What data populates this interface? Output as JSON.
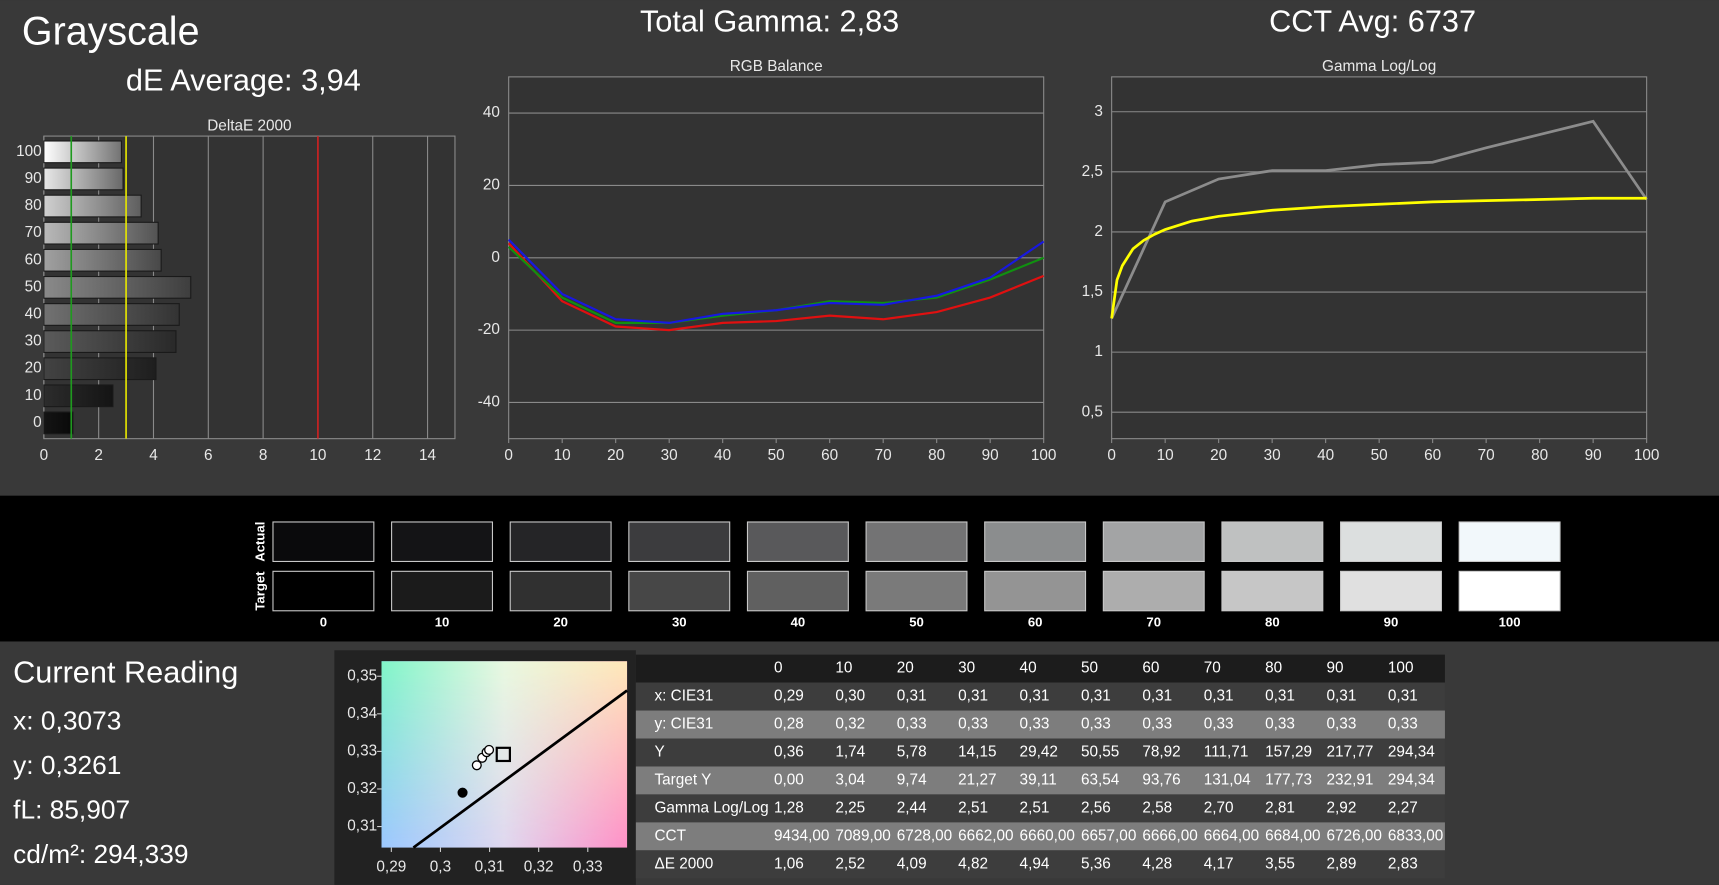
{
  "header": {
    "title": "Grayscale",
    "de_average": "dE Average: 3,94",
    "total_gamma": "Total Gamma: 2,83",
    "cct_avg": "CCT Avg: 6737"
  },
  "chart_data": [
    {
      "type": "hbar",
      "title": "DeltaE 2000",
      "categories": [
        "0",
        "10",
        "20",
        "30",
        "40",
        "50",
        "60",
        "70",
        "80",
        "90",
        "100"
      ],
      "values": [
        1.06,
        2.52,
        4.09,
        4.82,
        4.94,
        5.36,
        4.28,
        4.17,
        3.55,
        2.89,
        2.83
      ],
      "xlim": [
        0,
        15
      ],
      "xticks": [
        0,
        2,
        4,
        6,
        8,
        10,
        12,
        14
      ],
      "grid": true,
      "reference_lines": [
        {
          "value": 1,
          "color": "#1f9a1f"
        },
        {
          "value": 3,
          "color": "#e6e600"
        },
        {
          "value": 10,
          "color": "#cc2020"
        }
      ]
    },
    {
      "type": "line",
      "title": "RGB Balance",
      "x": [
        0,
        10,
        20,
        30,
        40,
        50,
        60,
        70,
        80,
        90,
        100
      ],
      "xlim": [
        0,
        100
      ],
      "xticks": [
        0,
        10,
        20,
        30,
        40,
        50,
        60,
        70,
        80,
        90,
        100
      ],
      "ylim": [
        -50,
        50
      ],
      "yticks": [
        -40,
        -20,
        0,
        20,
        40
      ],
      "grid": true,
      "series": [
        {
          "color": "#e01010",
          "values": [
            4,
            -12,
            -19,
            -20,
            -18,
            -17.5,
            -16,
            -17,
            -15,
            -11,
            -5
          ]
        },
        {
          "color": "#109010",
          "values": [
            3,
            -11,
            -18,
            -18,
            -16,
            -14.5,
            -12,
            -12.5,
            -11,
            -6,
            0
          ]
        },
        {
          "color": "#1818e0",
          "values": [
            5,
            -10,
            -17,
            -18,
            -15.5,
            -14.5,
            -12.5,
            -13,
            -10.5,
            -5.5,
            4.5
          ]
        }
      ]
    },
    {
      "type": "line",
      "title": "Gamma Log/Log",
      "x": [
        0,
        10,
        20,
        30,
        40,
        50,
        60,
        70,
        80,
        90,
        100
      ],
      "xlim": [
        0,
        100
      ],
      "xticks": [
        0,
        10,
        20,
        30,
        40,
        50,
        60,
        70,
        80,
        90,
        100
      ],
      "ylim": [
        0.28,
        3.29
      ],
      "yticks": [
        {
          "value": 0.5,
          "label": "0,5"
        },
        1,
        {
          "value": 1.5,
          "label": "1,5"
        },
        2,
        {
          "value": 2.5,
          "label": "2,5"
        },
        3
      ],
      "grid": true,
      "series": [
        {
          "color": "#8c8c8c",
          "values": [
            1.28,
            2.25,
            2.44,
            2.51,
            2.51,
            2.56,
            2.58,
            2.7,
            2.81,
            2.92,
            2.27
          ]
        },
        {
          "color": "#ffff00",
          "x": [
            0,
            1,
            2,
            4,
            6,
            8,
            10,
            15,
            20,
            30,
            40,
            50,
            60,
            70,
            80,
            90,
            100
          ],
          "values": [
            1.28,
            1.6,
            1.72,
            1.86,
            1.93,
            1.98,
            2.02,
            2.09,
            2.13,
            2.18,
            2.21,
            2.23,
            2.25,
            2.26,
            2.27,
            2.28,
            2.28
          ]
        }
      ]
    },
    {
      "type": "scatter",
      "xlim": [
        0.288,
        0.338
      ],
      "xticks": [
        {
          "value": 0.29,
          "label": "0,29"
        },
        {
          "value": 0.3,
          "label": "0,3"
        },
        {
          "value": 0.31,
          "label": "0,31"
        },
        {
          "value": 0.32,
          "label": "0,32"
        },
        {
          "value": 0.33,
          "label": "0,33"
        }
      ],
      "ylim": [
        0.3044,
        0.354
      ],
      "yticks": [
        {
          "value": 0.31,
          "label": "0,31"
        },
        {
          "value": 0.32,
          "label": "0,32"
        },
        {
          "value": 0.33,
          "label": "0,33"
        },
        {
          "value": 0.34,
          "label": "0,34"
        },
        {
          "value": 0.35,
          "label": "0,35"
        }
      ],
      "series": [
        {
          "marker": "line",
          "color": "#000000",
          "x": [
            0.2945,
            0.338
          ],
          "values": [
            0.3044,
            0.3462
          ]
        },
        {
          "marker": "circle-filled",
          "color": "#000000",
          "x": [
            0.3045
          ],
          "values": [
            0.319
          ]
        },
        {
          "marker": "circle-open",
          "color": "#000000",
          "x": [
            0.3074,
            0.3085,
            0.3094,
            0.3099
          ],
          "values": [
            0.3263,
            0.3283,
            0.3298,
            0.3304
          ]
        },
        {
          "marker": "square",
          "color": "#000000",
          "x": [
            0.3128
          ],
          "values": [
            0.3292
          ]
        }
      ]
    }
  ],
  "swatches": {
    "row_labels": [
      "Actual",
      "Target"
    ],
    "columns": [
      "0",
      "10",
      "20",
      "30",
      "40",
      "50",
      "60",
      "70",
      "80",
      "90",
      "100"
    ],
    "actual": [
      "#0a0a0c",
      "#141416",
      "#252527",
      "#3c3c3e",
      "#59595b",
      "#737374",
      "#8b8d8e",
      "#a3a4a5",
      "#bfc1c1",
      "#dcdfdf",
      "#f2f8fb"
    ],
    "target": [
      "#000000",
      "#1b1b1b",
      "#303030",
      "#474747",
      "#606060",
      "#7a7a7a",
      "#949494",
      "#adadad",
      "#c6c6c6",
      "#e0e0e0",
      "#ffffff"
    ]
  },
  "reading": {
    "title": "Current Reading",
    "lines": [
      "x: 0,3073",
      "y: 0,3261",
      "fL: 85,907",
      "cd/m²: 294,339"
    ]
  },
  "table": {
    "header": [
      "0",
      "10",
      "20",
      "30",
      "40",
      "50",
      "60",
      "70",
      "80",
      "90",
      "100"
    ],
    "rows": [
      {
        "label": "x: CIE31",
        "values": [
          "0,29",
          "0,30",
          "0,31",
          "0,31",
          "0,31",
          "0,31",
          "0,31",
          "0,31",
          "0,31",
          "0,31",
          "0,31"
        ]
      },
      {
        "label": "y: CIE31",
        "values": [
          "0,28",
          "0,32",
          "0,33",
          "0,33",
          "0,33",
          "0,33",
          "0,33",
          "0,33",
          "0,33",
          "0,33",
          "0,33"
        ]
      },
      {
        "label": "Y",
        "values": [
          "0,36",
          "1,74",
          "5,78",
          "14,15",
          "29,42",
          "50,55",
          "78,92",
          "111,71",
          "157,29",
          "217,77",
          "294,34"
        ]
      },
      {
        "label": "Target Y",
        "values": [
          "0,00",
          "3,04",
          "9,74",
          "21,27",
          "39,11",
          "63,54",
          "93,76",
          "131,04",
          "177,73",
          "232,91",
          "294,34"
        ]
      },
      {
        "label": "Gamma Log/Log",
        "values": [
          "1,28",
          "2,25",
          "2,44",
          "2,51",
          "2,51",
          "2,56",
          "2,58",
          "2,70",
          "2,81",
          "2,92",
          "2,27"
        ]
      },
      {
        "label": "CCT",
        "values": [
          "9434,00",
          "7089,00",
          "6728,00",
          "6662,00",
          "6660,00",
          "6657,00",
          "6666,00",
          "6664,00",
          "6684,00",
          "6726,00",
          "6833,00"
        ]
      },
      {
        "label": "ΔE 2000",
        "values": [
          "1,06",
          "2,52",
          "4,09",
          "4,82",
          "4,94",
          "5,36",
          "4,28",
          "4,17",
          "3,55",
          "2,89",
          "2,83"
        ]
      }
    ]
  }
}
